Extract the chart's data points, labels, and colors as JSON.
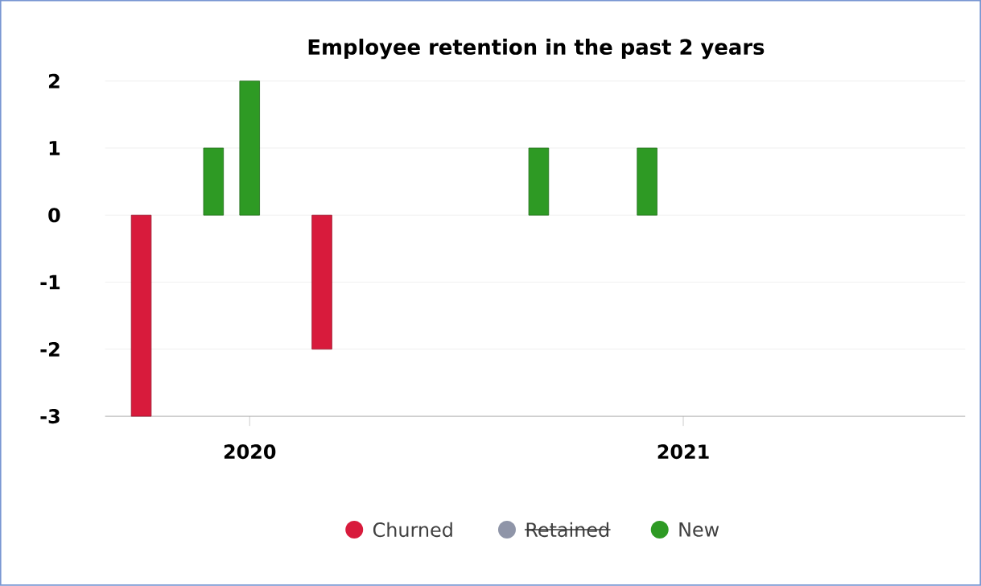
{
  "chart_data": {
    "type": "bar",
    "title": "Employee retention in the past 2 years",
    "series": [
      {
        "name": "Churned",
        "color": "#d81b3c",
        "x": [
          "2019-10",
          "2020-03"
        ],
        "values": [
          -3,
          -2
        ]
      },
      {
        "name": "Retained",
        "color": "#8f95a8"
      },
      {
        "name": "New",
        "color": "#2e9a24",
        "x": [
          "2019-12",
          "2020-01",
          "2020-09",
          "2020-12"
        ],
        "values": [
          1,
          2,
          1,
          1
        ]
      }
    ],
    "xlim": [
      "2019-09-01",
      "2021-08-25"
    ],
    "xticks": [
      "2020",
      "2021"
    ],
    "ylim": [
      -3,
      2
    ],
    "yticks": [
      -3,
      -2,
      -1,
      0,
      1,
      2
    ],
    "grid": "y",
    "legend": "bottom"
  }
}
